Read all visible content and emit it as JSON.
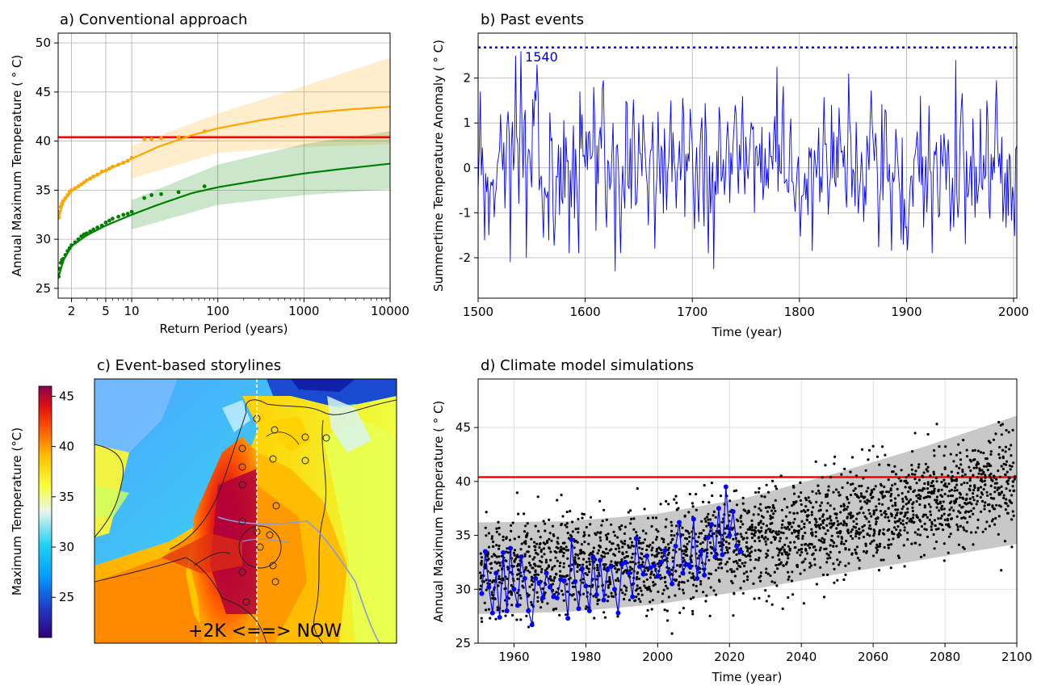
{
  "figure": {
    "panels": [
      {
        "id": "a",
        "title": "a) Conventional approach"
      },
      {
        "id": "b",
        "title": "b) Past events"
      },
      {
        "id": "c",
        "title": "c) Event-based storylines"
      },
      {
        "id": "d",
        "title": "d) Climate model simulations"
      }
    ]
  },
  "chart_data": [
    {
      "panel": "a",
      "type": "scatter",
      "title": "a) Conventional approach",
      "xlabel": "Return Period (years)",
      "ylabel": "Annual Maximum Temperature ( $^\\circ$C)",
      "ylabel_display": "Annual Maximum Temperature ( ° C)",
      "xscale": "log",
      "xlim": [
        1.4,
        10000
      ],
      "ylim": [
        24,
        51
      ],
      "xticks": [
        2,
        5,
        10,
        100,
        1000,
        10000
      ],
      "xtick_labels": [
        "2",
        "5",
        "10",
        "100",
        "1000",
        "10000"
      ],
      "yticks": [
        25,
        30,
        35,
        40,
        45,
        50
      ],
      "grid": true,
      "colors": {
        "orange": "#ffa500",
        "green": "#008000",
        "threshold": "#ff0000"
      },
      "threshold": 40.4,
      "series": [
        {
          "color": "orange",
          "fit_points": [
            [
              1.4,
              32.0
            ],
            [
              1.6,
              33.8
            ],
            [
              2,
              34.9
            ],
            [
              3,
              36.0
            ],
            [
              5,
              37.0
            ],
            [
              10,
              38.2
            ],
            [
              20,
              39.4
            ],
            [
              50,
              40.6
            ],
            [
              100,
              41.3
            ],
            [
              300,
              42.1
            ],
            [
              1000,
              42.8
            ],
            [
              3000,
              43.2
            ],
            [
              10000,
              43.5
            ]
          ],
          "band_lower": [
            [
              10,
              36.2
            ],
            [
              100,
              38.8
            ],
            [
              1000,
              39.4
            ],
            [
              10000,
              39.7
            ]
          ],
          "band_upper": [
            [
              10,
              39.5
            ],
            [
              100,
              42.8
            ],
            [
              1000,
              45.6
            ],
            [
              10000,
              48.5
            ]
          ],
          "observed": [
            [
              1.42,
              32.2
            ],
            [
              1.45,
              32.8
            ],
            [
              1.5,
              33.3
            ],
            [
              1.55,
              33.6
            ],
            [
              1.6,
              33.9
            ],
            [
              1.7,
              34.2
            ],
            [
              1.8,
              34.5
            ],
            [
              1.9,
              34.8
            ],
            [
              2.0,
              35.0
            ],
            [
              2.2,
              35.2
            ],
            [
              2.4,
              35.4
            ],
            [
              2.6,
              35.6
            ],
            [
              2.8,
              35.8
            ],
            [
              3.0,
              36.0
            ],
            [
              3.3,
              36.2
            ],
            [
              3.6,
              36.4
            ],
            [
              4.0,
              36.6
            ],
            [
              4.5,
              36.9
            ],
            [
              5.0,
              37.0
            ],
            [
              5.5,
              37.2
            ],
            [
              6.0,
              37.4
            ],
            [
              7.0,
              37.6
            ],
            [
              8.0,
              37.8
            ],
            [
              9.0,
              38.0
            ],
            [
              10.0,
              38.3
            ],
            [
              14,
              40.2
            ],
            [
              17,
              40.2
            ],
            [
              22,
              40.3
            ],
            [
              35,
              40.4
            ],
            [
              70,
              41.0
            ]
          ]
        },
        {
          "color": "green",
          "fit_points": [
            [
              1.4,
              26.0
            ],
            [
              1.6,
              27.8
            ],
            [
              2,
              29.3
            ],
            [
              3,
              30.4
            ],
            [
              5,
              31.4
            ],
            [
              10,
              32.5
            ],
            [
              20,
              33.5
            ],
            [
              50,
              34.7
            ],
            [
              100,
              35.3
            ],
            [
              300,
              36.0
            ],
            [
              1000,
              36.7
            ],
            [
              3000,
              37.2
            ],
            [
              10000,
              37.7
            ]
          ],
          "band_lower": [
            [
              10,
              31.0
            ],
            [
              100,
              33.5
            ],
            [
              1000,
              34.5
            ],
            [
              10000,
              35.1
            ]
          ],
          "band_upper": [
            [
              10,
              34.0
            ],
            [
              100,
              37.6
            ],
            [
              1000,
              39.7
            ],
            [
              10000,
              41.0
            ]
          ],
          "observed": [
            [
              1.42,
              26.2
            ],
            [
              1.45,
              27.0
            ],
            [
              1.5,
              27.6
            ],
            [
              1.55,
              27.9
            ],
            [
              1.6,
              28.0
            ],
            [
              1.7,
              28.4
            ],
            [
              1.8,
              28.8
            ],
            [
              1.9,
              29.1
            ],
            [
              2.0,
              29.4
            ],
            [
              2.2,
              29.7
            ],
            [
              2.4,
              30.0
            ],
            [
              2.6,
              30.3
            ],
            [
              2.8,
              30.5
            ],
            [
              3.0,
              30.6
            ],
            [
              3.3,
              30.8
            ],
            [
              3.6,
              31.0
            ],
            [
              4.0,
              31.2
            ],
            [
              4.5,
              31.4
            ],
            [
              5.0,
              31.7
            ],
            [
              5.5,
              31.9
            ],
            [
              6.0,
              32.1
            ],
            [
              7.0,
              32.3
            ],
            [
              8.0,
              32.5
            ],
            [
              9.0,
              32.6
            ],
            [
              10.0,
              32.8
            ],
            [
              14,
              34.2
            ],
            [
              17,
              34.5
            ],
            [
              22,
              34.6
            ],
            [
              35,
              34.8
            ],
            [
              70,
              35.4
            ]
          ]
        }
      ]
    },
    {
      "panel": "b",
      "type": "line",
      "title": "b) Past events",
      "xlabel": "Time (year)",
      "ylabel": "Summertime Temperature Anomaly ( $^\\circ$C)",
      "ylabel_display": "Summertime Temperature Anomaly ( ° C)",
      "xlim": [
        1500,
        2003
      ],
      "ylim": [
        -2.9,
        3.0
      ],
      "xticks": [
        1500,
        1600,
        1700,
        1800,
        1900,
        2000
      ],
      "yticks": [
        -2,
        -1,
        0,
        1,
        2
      ],
      "ytick_labels": [
        "-2",
        "-1",
        "0",
        "1",
        "2"
      ],
      "grid": true,
      "color": "#0000ff",
      "reference_line": {
        "value": 2.68,
        "style": "dotted"
      },
      "annotation": {
        "text": "1540",
        "x": 1540,
        "y": 2.68
      },
      "key_points": [
        [
          1500,
          -0.5
        ],
        [
          1502,
          1.7
        ],
        [
          1505,
          -0.3
        ],
        [
          1510,
          -1.5
        ],
        [
          1515,
          -1.1
        ],
        [
          1520,
          0.4
        ],
        [
          1525,
          -0.9
        ],
        [
          1530,
          -2.1
        ],
        [
          1535,
          2.5
        ],
        [
          1538,
          -0.8
        ],
        [
          1540,
          2.6
        ],
        [
          1545,
          -2.0
        ],
        [
          1555,
          2.3
        ],
        [
          1570,
          -1.0
        ],
        [
          1585,
          -1.9
        ],
        [
          1595,
          1.7
        ],
        [
          1610,
          -1.4
        ],
        [
          1628,
          -2.3
        ],
        [
          1650,
          1.0
        ],
        [
          1665,
          -1.8
        ],
        [
          1680,
          1.5
        ],
        [
          1700,
          0.5
        ],
        [
          1720,
          -2.25
        ],
        [
          1740,
          1.4
        ],
        [
          1758,
          -1.0
        ],
        [
          1779,
          2.25
        ],
        [
          1800,
          -0.8
        ],
        [
          1812,
          -1.85
        ],
        [
          1830,
          1.4
        ],
        [
          1846,
          2.1
        ],
        [
          1860,
          -1.2
        ],
        [
          1880,
          1.3
        ],
        [
          1895,
          -1.6
        ],
        [
          1913,
          1.6
        ],
        [
          1930,
          -1.1
        ],
        [
          1946,
          2.4
        ],
        [
          1955,
          -1.7
        ],
        [
          1975,
          1.5
        ],
        [
          1990,
          -1.2
        ],
        [
          2003,
          0.5
        ]
      ]
    },
    {
      "panel": "c",
      "type": "heatmap",
      "title": "c) Event-based storylines",
      "colorbar_label": "Maximum Temperature (°C)",
      "colorbar_range": [
        21,
        46
      ],
      "colorbar_ticks": [
        25,
        30,
        35,
        40,
        45
      ],
      "annotation": "+2K <==> NOW",
      "colormap": [
        "#30007a",
        "#1f3cc8",
        "#00a0ff",
        "#20d2f0",
        "#e8f4f0",
        "#f8ff40",
        "#ffc000",
        "#ff6000",
        "#e01010",
        "#8a0050"
      ]
    },
    {
      "panel": "d",
      "type": "scatter",
      "title": "d) Climate model simulations",
      "xlabel": "Time (year)",
      "ylabel": "Annual Maximum Temperature ( $^\\circ$C)",
      "ylabel_display": "Annual Maximum Temperature ( ° C)",
      "xlim": [
        1950,
        2100
      ],
      "ylim": [
        25,
        49.5
      ],
      "xticks": [
        1960,
        1980,
        2000,
        2020,
        2040,
        2060,
        2080,
        2100
      ],
      "yticks": [
        25,
        30,
        35,
        40,
        45
      ],
      "grid": true,
      "threshold": 40.4,
      "band": {
        "x": [
          1950,
          1975,
          2000,
          2025,
          2050,
          2075,
          2100
        ],
        "lower": [
          27.7,
          27.9,
          28.6,
          29.9,
          31.4,
          32.8,
          34.2
        ],
        "upper": [
          36.2,
          36.3,
          37.0,
          38.5,
          40.8,
          43.3,
          46.1
        ]
      },
      "model_mean": {
        "x": [
          1950,
          2000,
          2050,
          2100
        ],
        "y": [
          32.0,
          32.8,
          36.0,
          40.0
        ]
      },
      "model_spread": 2.4,
      "observed_series": {
        "color": "#0000ff",
        "x": [
          1951,
          1952,
          1953,
          1954,
          1955,
          1956,
          1957,
          1958,
          1959,
          1960,
          1961,
          1962,
          1963,
          1964,
          1965,
          1966,
          1967,
          1968,
          1969,
          1970,
          1971,
          1972,
          1973,
          1974,
          1975,
          1976,
          1977,
          1978,
          1979,
          1980,
          1981,
          1982,
          1983,
          1984,
          1985,
          1986,
          1987,
          1988,
          1989,
          1990,
          1991,
          1992,
          1993,
          1994,
          1995,
          1996,
          1997,
          1998,
          1999,
          2000,
          2001,
          2002,
          2003,
          2004,
          2005,
          2006,
          2007,
          2008,
          2009,
          2010,
          2011,
          2012,
          2013,
          2014,
          2015,
          2016,
          2017,
          2018,
          2019,
          2020,
          2021,
          2022,
          2023
        ],
        "y": [
          29.6,
          33.5,
          30.2,
          27.8,
          31.5,
          27.4,
          33.4,
          28.0,
          33.8,
          30.0,
          28.5,
          33.0,
          31.0,
          28.0,
          26.7,
          31.0,
          30.6,
          29.2,
          31.5,
          30.2,
          29.3,
          29.2,
          30.9,
          30.8,
          27.3,
          34.6,
          30.7,
          28.2,
          31.9,
          30.3,
          28.0,
          33.0,
          29.5,
          32.7,
          29.0,
          31.8,
          32.1,
          30.0,
          27.8,
          32.3,
          32.5,
          31.5,
          29.3,
          34.7,
          32.1,
          31.4,
          33.1,
          32.0,
          32.2,
          31.2,
          32.5,
          33.6,
          31.6,
          30.5,
          34.0,
          36.2,
          31.5,
          32.3,
          32.1,
          36.5,
          31.0,
          33.5,
          31.3,
          34.8,
          36.0,
          33.0,
          37.5,
          33.2,
          39.5,
          35.0,
          37.2,
          34.0,
          33.5
        ]
      }
    }
  ]
}
